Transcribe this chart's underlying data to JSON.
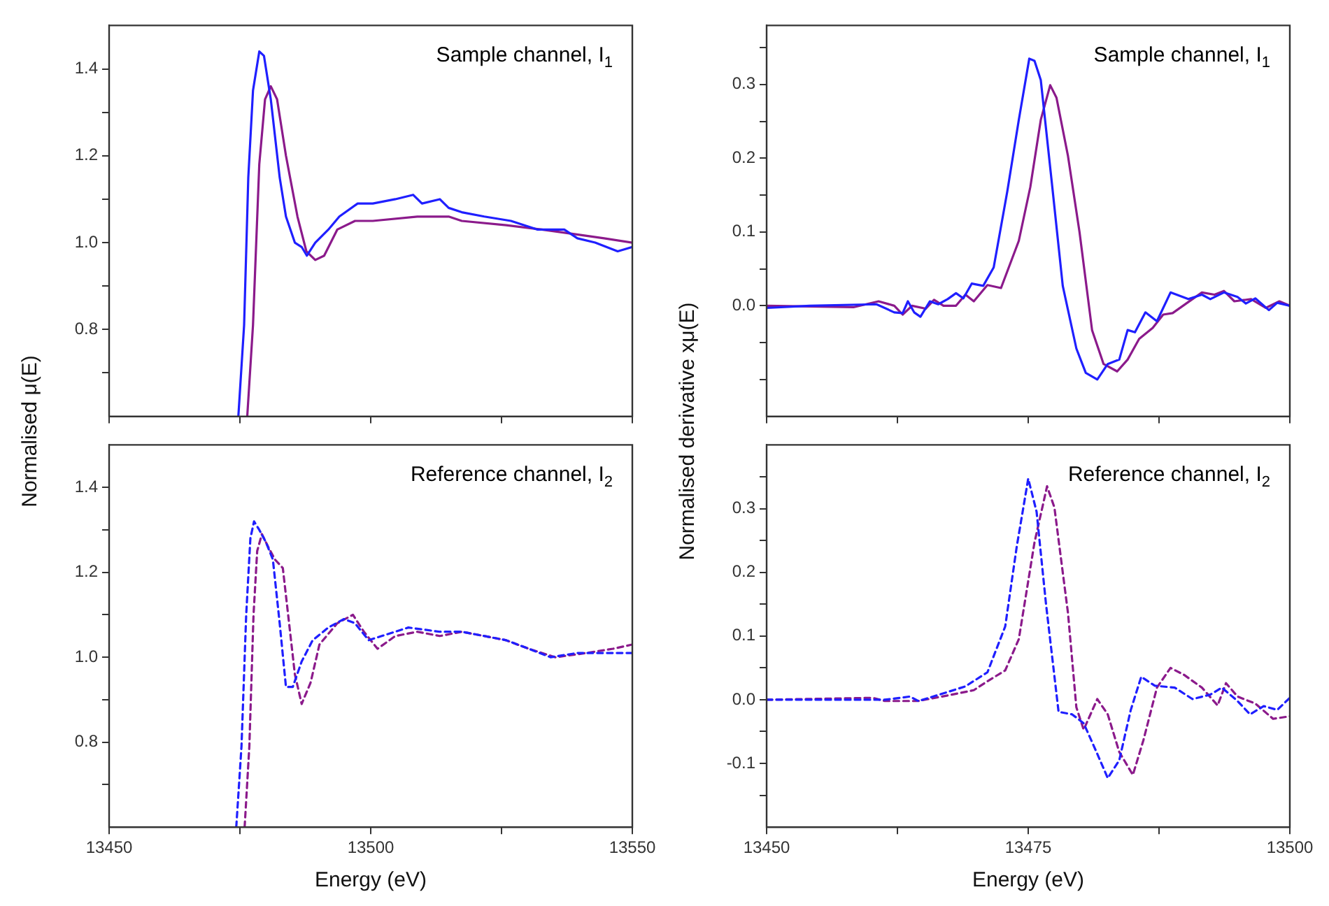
{
  "chart_data": [
    {
      "type": "line",
      "ylabel": "Normalised μ(E)",
      "annotations": [
        "Sample channel, I$_{1}$"
      ],
      "tick_labels": "y",
      "xlim": [
        13450,
        13550
      ],
      "xticks": [
        {
          "value": 13450,
          "label": null
        },
        {
          "value": 13475,
          "label": null
        },
        {
          "value": 13500,
          "label": null
        },
        {
          "value": 13525,
          "label": null
        },
        {
          "value": 13550,
          "label": null
        }
      ],
      "ylim": [
        0.6,
        1.5
      ],
      "yticks": [
        {
          "value": 0.7,
          "label": null
        },
        {
          "value": 0.8,
          "label": "0.8"
        },
        {
          "value": 0.9,
          "label": null
        },
        {
          "value": 1.0,
          "label": "1.0"
        },
        {
          "value": 1.1,
          "label": null
        },
        {
          "value": 1.2,
          "label": "1.2"
        },
        {
          "value": 1.3,
          "label": null
        },
        {
          "value": 1.4,
          "label": "1.4"
        }
      ],
      "line_style": "solid",
      "series": [
        {
          "color": "#1f1fff",
          "x": [
            13474.7,
            13475.8,
            13476.6,
            13477.5,
            13478.7,
            13479.6,
            13480.9,
            13482.6,
            13483.8,
            13485.5,
            13486.8,
            13487.8,
            13489.4,
            13491.9,
            13494.0,
            13497.5,
            13500.4,
            13504.7,
            13508.1,
            13509.8,
            13513.2,
            13514.9,
            13517.4,
            13521.7,
            13526.8,
            13531.9,
            13537.0,
            13539.5,
            13542.9,
            13547.2,
            13550
          ],
          "values": [
            0.6,
            0.81,
            1.15,
            1.35,
            1.44,
            1.43,
            1.33,
            1.15,
            1.06,
            1.0,
            0.99,
            0.97,
            1.0,
            1.03,
            1.06,
            1.09,
            1.09,
            1.1,
            1.11,
            1.09,
            1.1,
            1.08,
            1.07,
            1.06,
            1.05,
            1.03,
            1.03,
            1.01,
            1.0,
            0.98,
            0.99
          ]
        },
        {
          "color": "#8b1a8b",
          "x": [
            13476.4,
            13477.5,
            13478.7,
            13479.8,
            13480.9,
            13482.1,
            13483.8,
            13486.0,
            13487.7,
            13489.4,
            13491.1,
            13493.6,
            13497.0,
            13500.4,
            13508.9,
            13514.9,
            13517.4,
            13525.9,
            13532.7,
            13538.7,
            13544.6,
            13550
          ],
          "values": [
            0.6,
            0.81,
            1.18,
            1.33,
            1.36,
            1.33,
            1.2,
            1.06,
            0.98,
            0.96,
            0.97,
            1.03,
            1.05,
            1.05,
            1.06,
            1.06,
            1.05,
            1.04,
            1.03,
            1.02,
            1.01,
            1.0
          ]
        }
      ]
    },
    {
      "type": "line",
      "ylabel": "Normalised derivative xμ(E)",
      "annotations": [
        "Sample channel, I$_{1}$"
      ],
      "tick_labels": "y",
      "xlim": [
        13450,
        13500
      ],
      "xticks": [
        {
          "value": 13450,
          "label": null
        },
        {
          "value": 13462.5,
          "label": null
        },
        {
          "value": 13475,
          "label": null
        },
        {
          "value": 13487.5,
          "label": null
        },
        {
          "value": 13500,
          "label": null
        }
      ],
      "ylim": [
        -0.15,
        0.38
      ],
      "yticks": [
        {
          "value": -0.1,
          "label": null
        },
        {
          "value": -0.05,
          "label": null
        },
        {
          "value": 0,
          "label": "0.0"
        },
        {
          "value": 0.05,
          "label": null
        },
        {
          "value": 0.1,
          "label": "0.1"
        },
        {
          "value": 0.15,
          "label": null
        },
        {
          "value": 0.2,
          "label": "0.2"
        },
        {
          "value": 0.25,
          "label": null
        },
        {
          "value": 0.3,
          "label": "0.3"
        },
        {
          "value": 0.35,
          "label": null
        }
      ],
      "line_style": "solid",
      "series": [
        {
          "color": "#1f1fff",
          "x": [
            13450,
            13454.1,
            13460.5,
            13462.2,
            13463.0,
            13463.5,
            13464.1,
            13464.7,
            13465.6,
            13466.4,
            13467.3,
            13468.1,
            13468.8,
            13469.6,
            13470.7,
            13471.7,
            13473.0,
            13474.1,
            13475.1,
            13475.6,
            13476.2,
            13477.3,
            13478.3,
            13479.6,
            13480.5,
            13481.6,
            13482.6,
            13483.7,
            13484.5,
            13485.2,
            13486.2,
            13487.3,
            13488.6,
            13490.3,
            13491.6,
            13492.4,
            13493.7,
            13495.0,
            13495.8,
            13496.7,
            13498.0,
            13498.8,
            13500
          ],
          "values": [
            -0.003,
            0,
            0.002,
            -0.009,
            -0.01,
            0.006,
            -0.009,
            -0.015,
            0.006,
            0.002,
            0.009,
            0.017,
            0.01,
            0.03,
            0.027,
            0.052,
            0.155,
            0.252,
            0.335,
            0.332,
            0.306,
            0.161,
            0.027,
            -0.058,
            -0.091,
            -0.1,
            -0.079,
            -0.073,
            -0.033,
            -0.036,
            -0.009,
            -0.021,
            0.018,
            0.009,
            0.015,
            0.009,
            0.018,
            0.012,
            0.003,
            0.01,
            -0.006,
            0.004,
            0
          ]
        },
        {
          "color": "#8b1a8b",
          "x": [
            13450,
            13458.3,
            13460.7,
            13462.2,
            13463.0,
            13463.9,
            13465.2,
            13466.0,
            13466.9,
            13468.1,
            13469.0,
            13469.8,
            13471.1,
            13472.4,
            13474.1,
            13475.2,
            13476.2,
            13477.1,
            13477.7,
            13478.8,
            13479.9,
            13481.1,
            13482.2,
            13483.5,
            13484.5,
            13485.6,
            13486.9,
            13487.9,
            13488.8,
            13490.1,
            13491.6,
            13492.8,
            13493.7,
            13494.7,
            13496.3,
            13497.7,
            13499.0,
            13500
          ],
          "values": [
            0,
            -0.002,
            0.006,
            0,
            -0.012,
            0,
            -0.004,
            0.008,
            0,
            0,
            0.015,
            0.006,
            0.028,
            0.024,
            0.088,
            0.161,
            0.252,
            0.299,
            0.282,
            0.203,
            0.1,
            -0.033,
            -0.079,
            -0.089,
            -0.073,
            -0.045,
            -0.03,
            -0.012,
            -0.01,
            0.003,
            0.018,
            0.015,
            0.02,
            0.006,
            0.009,
            -0.003,
            0.006,
            0
          ]
        }
      ]
    },
    {
      "type": "line",
      "xlabel": "Energy (eV)",
      "annotations": [
        "Reference channel, I$_{2}$"
      ],
      "xlim": [
        13450,
        13550
      ],
      "xticks": [
        13450,
        {
          "value": 13475,
          "label": null
        },
        13500,
        {
          "value": 13525,
          "label": null
        },
        13550
      ],
      "ylim": [
        0.6,
        1.5
      ],
      "yticks": [
        {
          "value": 0.7,
          "label": null
        },
        {
          "value": 0.8,
          "label": "0.8"
        },
        {
          "value": 0.9,
          "label": null
        },
        {
          "value": 1.0,
          "label": "1.0"
        },
        {
          "value": 1.1,
          "label": null
        },
        {
          "value": 1.2,
          "label": "1.2"
        },
        {
          "value": 1.3,
          "label": null
        },
        {
          "value": 1.4,
          "label": "1.4"
        }
      ],
      "line_style": "dashed",
      "series": [
        {
          "color": "#1f1fff",
          "x": [
            13474.3,
            13475.3,
            13476.2,
            13477.0,
            13477.7,
            13478.7,
            13480.0,
            13481.3,
            13482.6,
            13483.8,
            13485.1,
            13486.8,
            13488.9,
            13491.9,
            13494.9,
            13497.0,
            13499.6,
            13502.1,
            13507.2,
            13513.2,
            13517.4,
            13521.7,
            13525.9,
            13530.2,
            13534.4,
            13539.5,
            13544.6,
            13550
          ],
          "values": [
            0.6,
            0.79,
            1.1,
            1.28,
            1.32,
            1.3,
            1.27,
            1.23,
            1.08,
            0.93,
            0.93,
            0.99,
            1.04,
            1.07,
            1.09,
            1.08,
            1.04,
            1.05,
            1.07,
            1.06,
            1.06,
            1.05,
            1.04,
            1.02,
            1.0,
            1.01,
            1.01,
            1.01
          ]
        },
        {
          "color": "#8b1a8b",
          "x": [
            13475.9,
            13476.8,
            13477.6,
            13478.3,
            13479.2,
            13480.4,
            13481.7,
            13483.2,
            13484.4,
            13485.5,
            13486.8,
            13488.5,
            13490.2,
            13493.6,
            13496.6,
            13498.7,
            13501.3,
            13504.7,
            13508.9,
            13513.2,
            13517.4,
            13521.7,
            13525.9,
            13530.2,
            13535.3,
            13541.2,
            13546.3,
            13550
          ],
          "values": [
            0.6,
            0.79,
            1.1,
            1.25,
            1.29,
            1.26,
            1.23,
            1.21,
            1.08,
            0.96,
            0.89,
            0.94,
            1.03,
            1.08,
            1.1,
            1.06,
            1.02,
            1.05,
            1.06,
            1.05,
            1.06,
            1.05,
            1.04,
            1.02,
            1.0,
            1.01,
            1.02,
            1.03
          ]
        }
      ]
    },
    {
      "type": "line",
      "xlabel": "Energy (eV)",
      "annotations": [
        "Reference channel, I$_{2}$"
      ],
      "xlim": [
        13450,
        13500
      ],
      "xticks": [
        13450,
        {
          "value": 13462.5,
          "label": null
        },
        13475,
        {
          "value": 13487.5,
          "label": null
        },
        13500
      ],
      "ylim": [
        -0.2,
        0.4
      ],
      "yticks": [
        {
          "value": -0.15,
          "label": null
        },
        {
          "value": -0.1,
          "label": "-0.1"
        },
        {
          "value": -0.05,
          "label": null
        },
        {
          "value": 0,
          "label": "0.0"
        },
        {
          "value": 0.05,
          "label": null
        },
        {
          "value": 0.1,
          "label": "0.1"
        },
        {
          "value": 0.15,
          "label": null
        },
        {
          "value": 0.2,
          "label": "0.2"
        },
        {
          "value": 0.25,
          "label": null
        },
        {
          "value": 0.3,
          "label": "0.3"
        },
        {
          "value": 0.35,
          "label": null
        }
      ],
      "line_style": "dashed",
      "series": [
        {
          "color": "#1f1fff",
          "x": [
            13450,
            13458.3,
            13461.3,
            13463.7,
            13464.5,
            13466.9,
            13469.0,
            13471.1,
            13472.8,
            13473.9,
            13475.0,
            13475.8,
            13476.7,
            13477.9,
            13479.2,
            13480.3,
            13481.6,
            13482.6,
            13483.7,
            13484.8,
            13485.8,
            13487.1,
            13489.0,
            13490.7,
            13492.4,
            13493.5,
            13495.0,
            13496.2,
            13497.5,
            13498.8,
            13500
          ],
          "values": [
            0,
            0,
            0,
            0.005,
            -0.002,
            0.01,
            0.021,
            0.043,
            0.115,
            0.24,
            0.347,
            0.295,
            0.15,
            -0.019,
            -0.023,
            -0.037,
            -0.085,
            -0.123,
            -0.095,
            -0.016,
            0.036,
            0.022,
            0.019,
            0.001,
            0.008,
            0.019,
            -0.002,
            -0.023,
            -0.01,
            -0.016,
            0.003
          ]
        },
        {
          "color": "#8b1a8b",
          "x": [
            13450,
            13460.1,
            13461.3,
            13464.5,
            13467.7,
            13469.8,
            13471.1,
            13472.8,
            13474.1,
            13475.6,
            13476.8,
            13477.5,
            13478.8,
            13479.6,
            13480.3,
            13481.6,
            13482.6,
            13483.7,
            13485.0,
            13486.0,
            13487.3,
            13488.6,
            13489.9,
            13491.6,
            13493.1,
            13493.9,
            13495.0,
            13496.7,
            13498.4,
            13500
          ],
          "values": [
            0,
            0.003,
            -0.002,
            -0.002,
            0.008,
            0.015,
            0.029,
            0.046,
            0.095,
            0.247,
            0.335,
            0.302,
            0.136,
            -0.012,
            -0.047,
            0.001,
            -0.023,
            -0.082,
            -0.118,
            -0.064,
            0.019,
            0.05,
            0.039,
            0.019,
            -0.009,
            0.026,
            0.005,
            -0.006,
            -0.03,
            -0.026
          ]
        }
      ]
    }
  ]
}
